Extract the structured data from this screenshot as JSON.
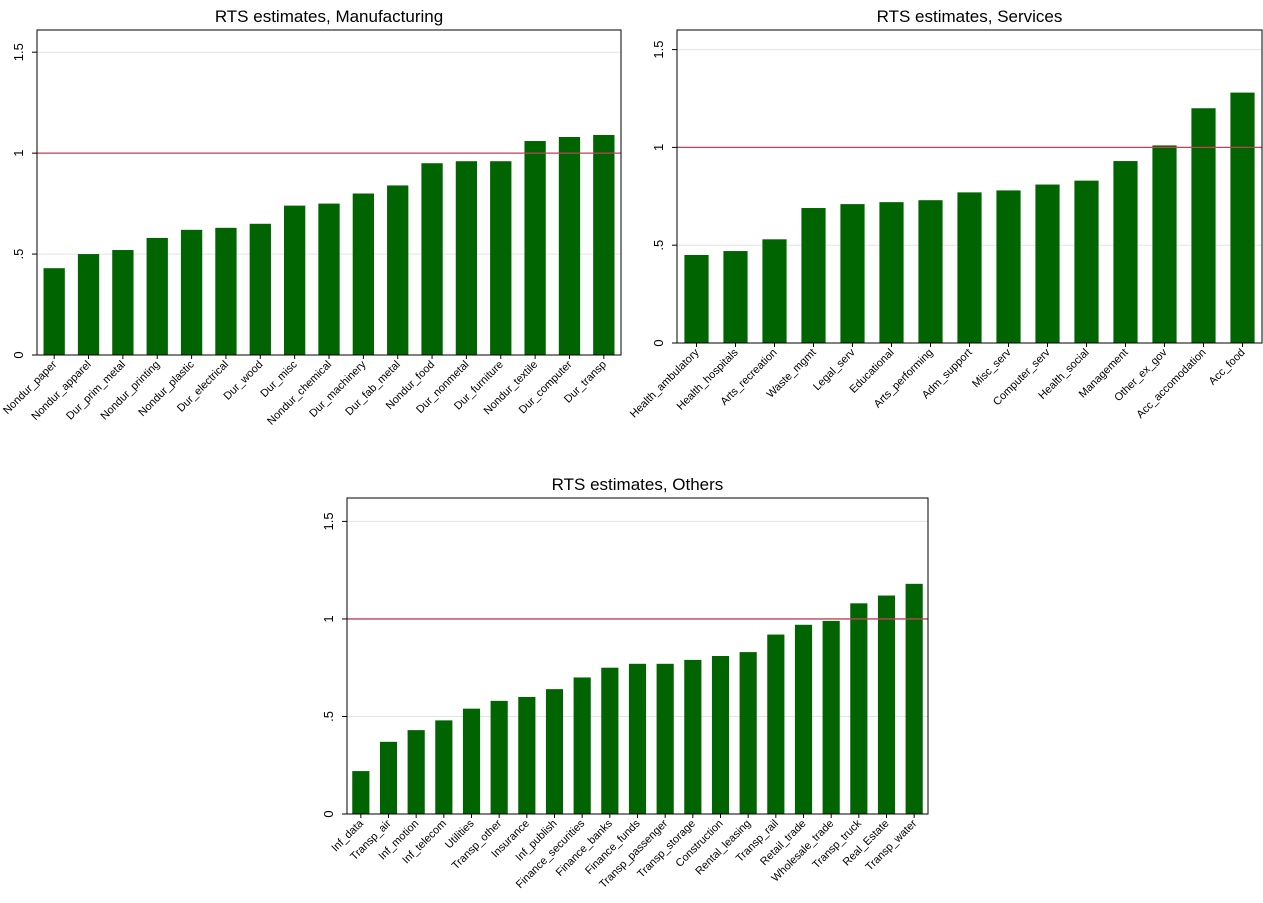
{
  "chart_data": [
    {
      "type": "bar",
      "title": "RTS estimates, Manufacturing",
      "categories": [
        "Nondur_paper",
        "Nondur_apparel",
        "Dur_prim_metal",
        "Nondur_printing",
        "Nondur_plastic",
        "Dur_electrical",
        "Dur_wood",
        "Dur_misc",
        "Nondur_chemical",
        "Dur_machinery",
        "Dur_fab_metal",
        "Nondur_food",
        "Dur_nonmetal",
        "Dur_furniture",
        "Nondur_textile",
        "Dur_computer",
        "Dur_transp"
      ],
      "values": [
        0.43,
        0.5,
        0.52,
        0.58,
        0.62,
        0.63,
        0.65,
        0.74,
        0.75,
        0.8,
        0.84,
        0.95,
        0.96,
        0.96,
        1.06,
        1.08,
        1.09
      ],
      "color": "#006400",
      "ylim": [
        0,
        1.61
      ],
      "yticks": [
        0,
        {
          "value": 0.5,
          "label": ".5"
        },
        1,
        1.5
      ],
      "grid": true,
      "refline": 1,
      "refline_color": "#c0415a"
    },
    {
      "type": "bar",
      "title": "RTS estimates, Services",
      "categories": [
        "Health_ambulatory",
        "Health_hospitals",
        "Arts_recreation",
        "Waste_mgmt",
        "Legal_serv",
        "Educational",
        "Arts_performing",
        "Adm_support",
        "Misc_serv",
        "Computer_serv",
        "Health_social",
        "Management",
        "Other_ex_gov",
        "Acc_accomodation",
        "Acc_food"
      ],
      "values": [
        0.45,
        0.47,
        0.53,
        0.69,
        0.71,
        0.72,
        0.73,
        0.77,
        0.78,
        0.81,
        0.83,
        0.93,
        1.01,
        1.2,
        1.28
      ],
      "color": "#006400",
      "ylim": [
        0,
        1.6
      ],
      "yticks": [
        0,
        {
          "value": 0.5,
          "label": ".5"
        },
        1,
        1.5
      ],
      "grid": true,
      "refline": 1,
      "refline_color": "#c0415a"
    },
    {
      "type": "bar",
      "title": "RTS estimates, Others",
      "categories": [
        "Inf_data",
        "Transp_air",
        "Inf_motion",
        "Inf_telecom",
        "Utilities",
        "Transp_other",
        "Insurance",
        "Inf_publish",
        "Finance_securities",
        "Finance_banks",
        "Finance_funds",
        "Transp_passenger",
        "Transp_storage",
        "Construction",
        "Rental_leasing",
        "Transp_rail",
        "Retail_trade",
        "Wholesale_trade",
        "Transp_truck",
        "Real_Estate",
        "Transp_water"
      ],
      "values": [
        0.22,
        0.37,
        0.43,
        0.48,
        0.54,
        0.58,
        0.6,
        0.64,
        0.7,
        0.75,
        0.77,
        0.77,
        0.79,
        0.81,
        0.83,
        0.92,
        0.97,
        0.99,
        1.08,
        1.12,
        1.18
      ],
      "color": "#006400",
      "ylim": [
        0,
        1.62
      ],
      "yticks": [
        0,
        {
          "value": 0.5,
          "label": ".5"
        },
        1,
        1.5
      ],
      "grid": true,
      "refline": 1,
      "refline_color": "#c0415a"
    }
  ]
}
